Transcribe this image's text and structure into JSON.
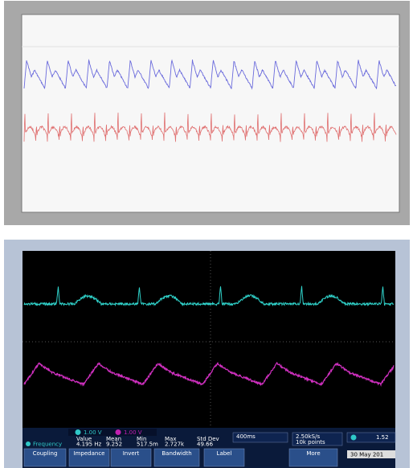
{
  "scope": {
    "channels": [
      "1.00 V",
      "1.00 V"
    ],
    "measure_headers": [
      "Value",
      "Mean",
      "Min",
      "Max",
      "Std Dev"
    ],
    "measure_label": "Frequency",
    "measure_values": [
      "4.195 Hz",
      "9.252",
      "517.5m",
      "2.727k",
      "49.66"
    ],
    "timebase": "400ms",
    "sample_rate": "2.50kS/s",
    "record_length": "10k points",
    "trigger_level": "1.52",
    "menu": [
      "Coupling",
      "Impedance",
      "Invert",
      "Bandwidth",
      "Label",
      "More"
    ],
    "date": "30 May 201"
  }
}
